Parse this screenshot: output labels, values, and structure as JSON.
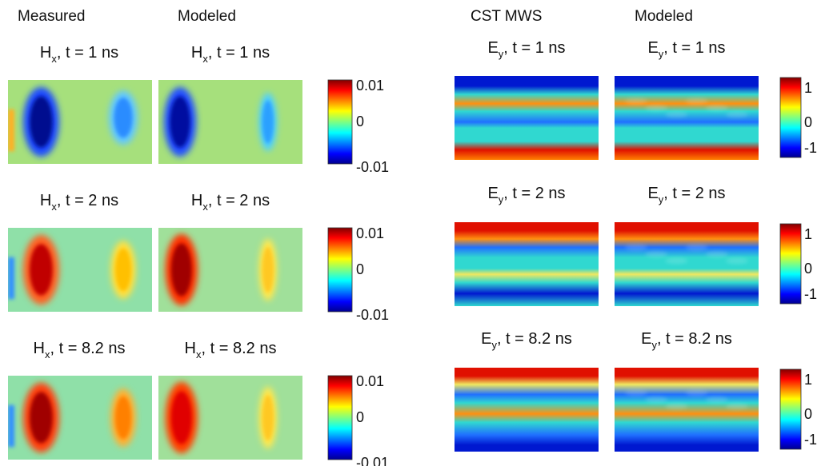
{
  "left": {
    "headers": [
      "Measured",
      "Modeled"
    ],
    "rows": [
      {
        "titles": [
          {
            "symbol": "H",
            "sub": "x",
            "rest": ", t = 1 ns"
          },
          {
            "symbol": "H",
            "sub": "x",
            "rest": ", t = 1 ns"
          }
        ],
        "colorbar": [
          "0.01",
          "0",
          "-0.01"
        ]
      },
      {
        "titles": [
          {
            "symbol": "H",
            "sub": "x",
            "rest": ", t = 2 ns"
          },
          {
            "symbol": "H",
            "sub": "x",
            "rest": ", t = 2 ns"
          }
        ],
        "colorbar": [
          "0.01",
          "0",
          "-0.01"
        ]
      },
      {
        "titles": [
          {
            "symbol": "H",
            "sub": "x",
            "rest": ", t = 8.2 ns"
          },
          {
            "symbol": "H",
            "sub": "x",
            "rest": ", t = 8.2 ns"
          }
        ],
        "colorbar": [
          "0.01",
          "0",
          "-0.01"
        ]
      }
    ]
  },
  "right": {
    "headers": [
      "CST MWS",
      "Modeled"
    ],
    "rows": [
      {
        "titles": [
          {
            "symbol": "E",
            "sub": "y",
            "rest": ", t = 1 ns"
          },
          {
            "symbol": "E",
            "sub": "y",
            "rest": ", t = 1 ns"
          }
        ],
        "colorbar": [
          "1",
          "0",
          "-1"
        ]
      },
      {
        "titles": [
          {
            "symbol": "E",
            "sub": "y",
            "rest": ", t = 2 ns"
          },
          {
            "symbol": "E",
            "sub": "y",
            "rest": ", t = 2 ns"
          }
        ],
        "colorbar": [
          "1",
          "0",
          "-1"
        ]
      },
      {
        "titles": [
          {
            "symbol": "E",
            "sub": "y",
            "rest": ", t = 8.2 ns"
          },
          {
            "symbol": "E",
            "sub": "y",
            "rest": ", t = 8.2 ns"
          }
        ],
        "colorbar": [
          "1",
          "0",
          "-1"
        ]
      }
    ]
  }
}
